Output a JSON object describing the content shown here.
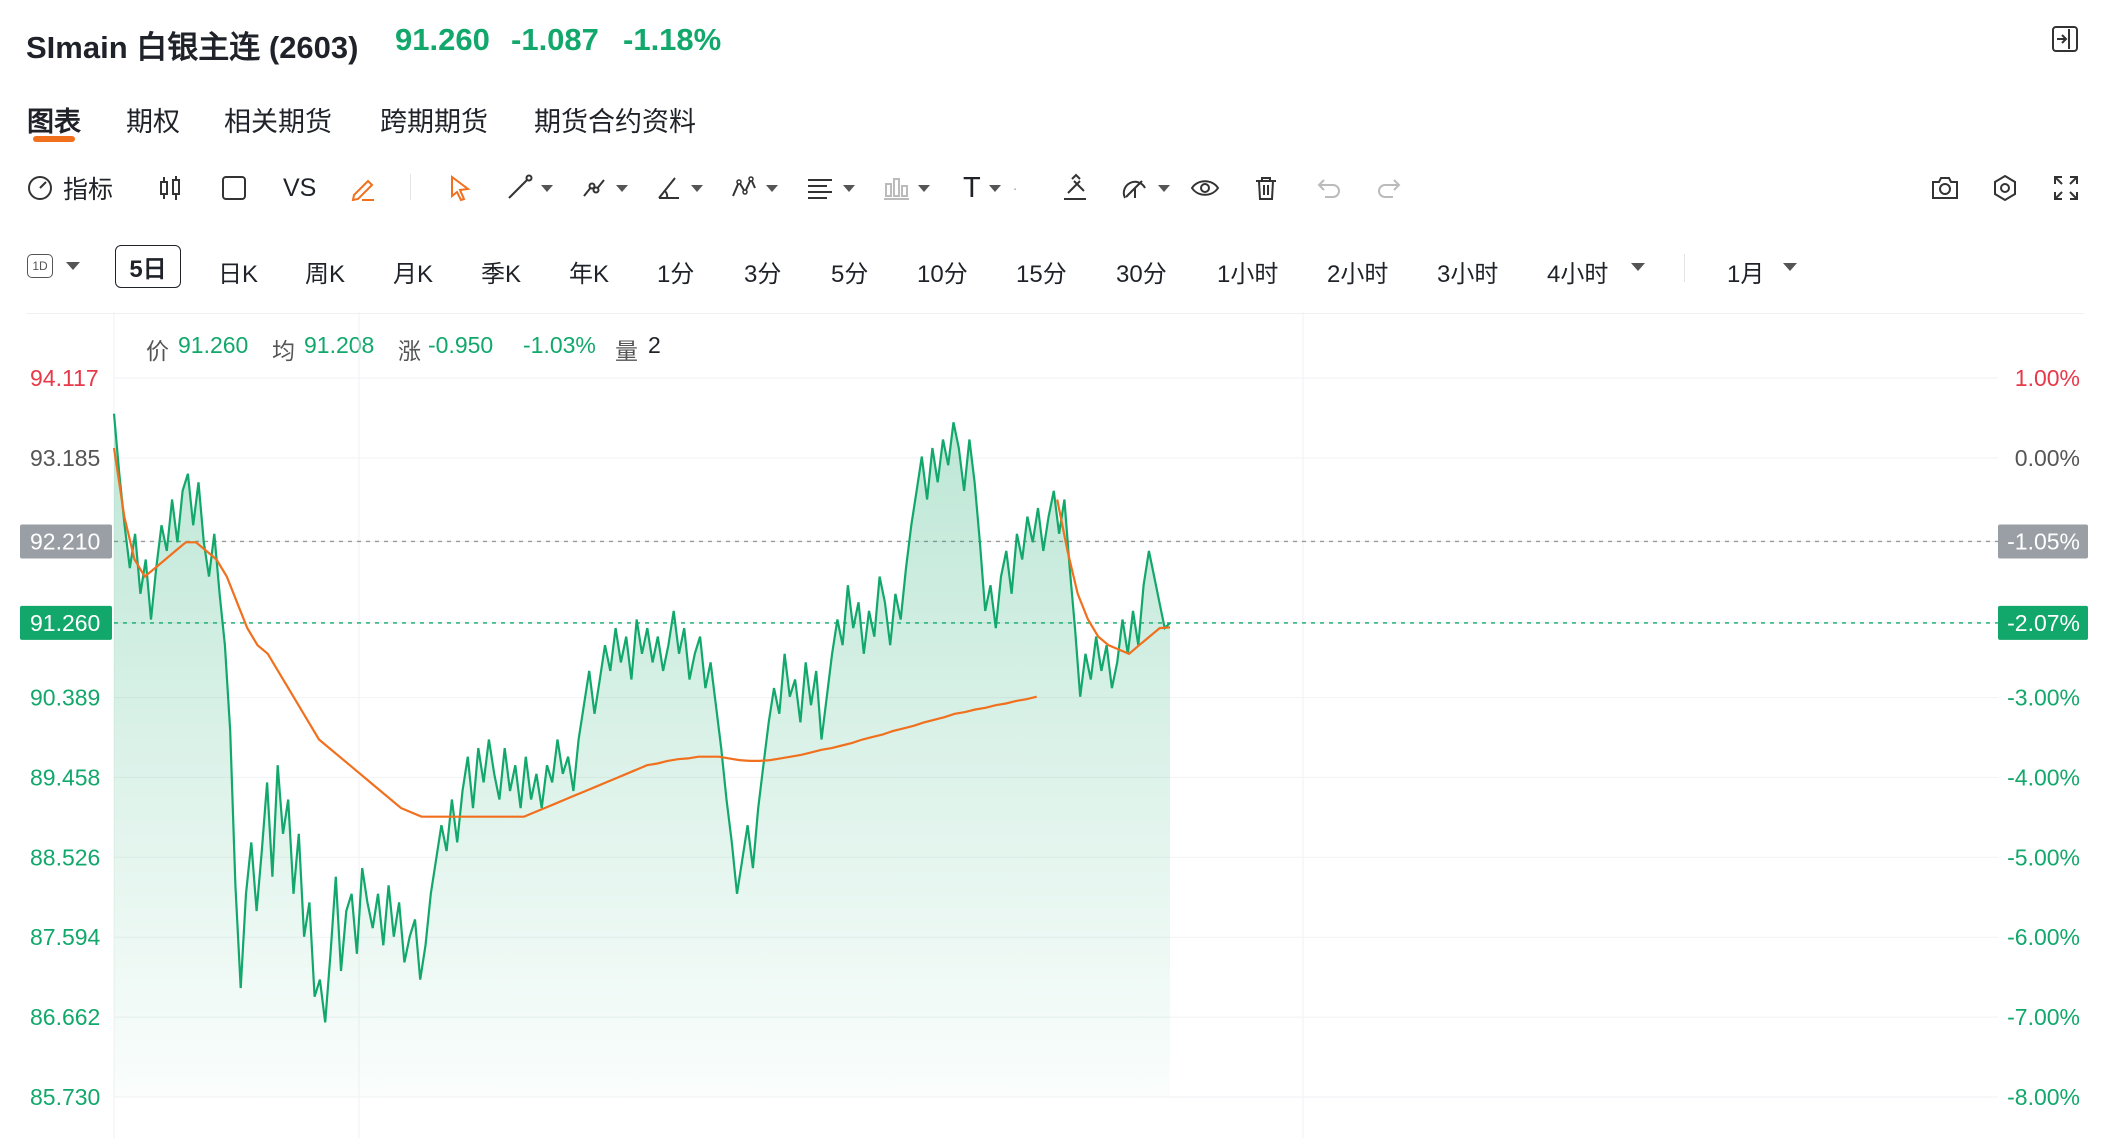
{
  "header": {
    "title": "SImain 白银主连 (2603)",
    "price": "91.260",
    "change": "-1.087",
    "change_pct": "-1.18%"
  },
  "tabs": [
    {
      "label": "图表",
      "active": true
    },
    {
      "label": "期权"
    },
    {
      "label": "相关期货"
    },
    {
      "label": "跨期期货"
    },
    {
      "label": "期货合约资料"
    }
  ],
  "toolbar": {
    "indicators_label": "指标",
    "compare_label": "VS",
    "text_tool_label": "T",
    "icons": [
      "gauge-icon",
      "candlestick-icon",
      "square-icon",
      "vs",
      "pencil-icon",
      "cursor-icon",
      "line-icon",
      "multi-line-icon",
      "angle-icon",
      "pattern-icon",
      "fib-icon",
      "bar-measure-icon",
      "text-icon",
      "magnet-icon",
      "draw-lock-icon",
      "eye-icon",
      "trash-icon",
      "undo-icon",
      "redo-icon",
      "camera-icon",
      "settings-icon",
      "fullscreen-icon"
    ]
  },
  "periods": {
    "interval_badge": "1D",
    "items": [
      "5日",
      "日K",
      "周K",
      "月K",
      "季K",
      "年K",
      "1分",
      "3分",
      "5分",
      "10分",
      "15分",
      "30分",
      "1小时",
      "2小时",
      "3小时",
      "4小时",
      "1月"
    ],
    "active": "5日"
  },
  "legend": {
    "price_label": "价",
    "price": "91.260",
    "avg_label": "均",
    "avg": "91.208",
    "change_label": "涨",
    "change": "-0.950",
    "change_pct": "-1.03%",
    "volume_label": "量",
    "volume": "2"
  },
  "colors": {
    "up": "#e8384a",
    "down": "#12a86b",
    "avg_line": "#f0701e",
    "accent": "#f0701e"
  },
  "chart_data": {
    "type": "area",
    "y_left_ticks": [
      "94.117",
      "93.185",
      "92.210",
      "91.260",
      "90.389",
      "89.458",
      "88.526",
      "87.594",
      "86.662",
      "85.730"
    ],
    "y_right_ticks": [
      "1.00%",
      "0.00%",
      "-1.05%",
      "-2.07%",
      "-3.00%",
      "-4.00%",
      "-5.00%",
      "-6.00%",
      "-7.00%",
      "-8.00%"
    ],
    "ylim": [
      85.73,
      94.117
    ],
    "reference_price": 93.185,
    "highlight_left": [
      {
        "label": "92.210",
        "value": 92.21,
        "style": "gray"
      },
      {
        "label": "91.260",
        "value": 91.26,
        "style": "green"
      }
    ],
    "highlight_right": [
      {
        "label": "-1.05%",
        "value": 92.21,
        "style": "gray"
      },
      {
        "label": "-2.07%",
        "value": 91.26,
        "style": "green"
      }
    ],
    "sessions": 5,
    "series": [
      {
        "name": "价",
        "values": [
          93.7,
          93.0,
          92.4,
          91.9,
          92.3,
          91.6,
          92.0,
          91.3,
          91.9,
          92.4,
          92.1,
          92.7,
          92.2,
          92.8,
          93.0,
          92.4,
          92.9,
          92.2,
          91.8,
          92.3,
          91.6,
          91.0,
          90.0,
          88.2,
          87.0,
          88.1,
          88.7,
          87.9,
          88.6,
          89.4,
          88.3,
          89.6,
          88.8,
          89.2,
          88.1,
          88.8,
          87.6,
          88.0,
          86.9,
          87.1,
          86.6,
          87.4,
          88.3,
          87.2,
          87.9,
          88.1,
          87.4,
          88.4,
          88.0,
          87.7,
          88.1,
          87.5,
          88.2,
          87.6,
          88.0,
          87.3,
          87.6,
          87.8,
          87.1,
          87.5,
          88.1,
          88.5,
          88.9,
          88.6,
          89.2,
          88.7,
          89.3,
          89.7,
          89.1,
          89.8,
          89.4,
          89.9,
          89.5,
          89.2,
          89.8,
          89.3,
          89.6,
          89.1,
          89.7,
          89.2,
          89.5,
          89.1,
          89.6,
          89.4,
          89.9,
          89.5,
          89.7,
          89.3,
          89.9,
          90.3,
          90.7,
          90.2,
          90.6,
          91.0,
          90.7,
          91.2,
          90.8,
          91.1,
          90.6,
          91.3,
          90.9,
          91.2,
          90.8,
          91.1,
          90.7,
          91.0,
          91.4,
          90.9,
          91.2,
          90.6,
          90.9,
          91.1,
          90.5,
          90.8,
          90.3,
          89.8,
          89.2,
          88.7,
          88.1,
          88.5,
          88.9,
          88.4,
          89.1,
          89.6,
          90.1,
          90.5,
          90.2,
          90.9,
          90.4,
          90.6,
          90.1,
          90.8,
          90.3,
          90.7,
          89.9,
          90.4,
          90.9,
          91.3,
          91.0,
          91.7,
          91.2,
          91.5,
          90.9,
          91.4,
          91.1,
          91.8,
          91.5,
          91.0,
          91.6,
          91.3,
          91.9,
          92.4,
          92.8,
          93.2,
          92.7,
          93.3,
          92.9,
          93.4,
          93.1,
          93.6,
          93.3,
          92.8,
          93.4,
          92.9,
          92.2,
          91.4,
          91.7,
          91.2,
          91.8,
          92.1,
          91.6,
          92.3,
          92.0,
          92.5,
          92.2,
          92.6,
          92.1,
          92.5,
          92.8,
          92.3,
          92.7,
          91.9,
          91.2,
          90.4,
          90.9,
          90.6,
          91.1,
          90.7,
          91.0,
          90.5,
          90.8,
          91.3,
          90.9,
          91.4,
          91.0,
          91.7,
          92.1,
          91.8,
          91.5,
          91.2,
          91.26
        ],
        "color": "#12a86b"
      },
      {
        "name": "均",
        "values": [
          93.3,
          92.5,
          92.0,
          91.8,
          91.9,
          92.0,
          92.1,
          92.2,
          92.2,
          92.1,
          92.0,
          91.8,
          91.5,
          91.2,
          91.0,
          90.9,
          90.7,
          90.5,
          90.3,
          90.1,
          89.9,
          89.8,
          89.7,
          89.6,
          89.5,
          89.4,
          89.3,
          89.2,
          89.1,
          89.05,
          89.0,
          89.0,
          89.0,
          89.0,
          89.0,
          89.0,
          89.0,
          89.0,
          89.0,
          89.0,
          89.0,
          89.05,
          89.1,
          89.15,
          89.2,
          89.25,
          89.3,
          89.35,
          89.4,
          89.45,
          89.5,
          89.55,
          89.6,
          89.62,
          89.65,
          89.67,
          89.68,
          89.7,
          89.7,
          89.7,
          89.68,
          89.66,
          89.65,
          89.65,
          89.66,
          89.68,
          89.7,
          89.72,
          89.75,
          89.78,
          89.8,
          89.83,
          89.86,
          89.9,
          89.93,
          89.96,
          90.0,
          90.03,
          90.06,
          90.1,
          90.13,
          90.16,
          90.2,
          90.22,
          90.25,
          90.27,
          90.3,
          90.32,
          90.35,
          90.37,
          90.4,
          null,
          92.7,
          92.1,
          91.6,
          91.3,
          91.1,
          91.0,
          90.95,
          90.9,
          91.0,
          91.1,
          91.2,
          91.208
        ],
        "color": "#f0701e"
      }
    ]
  }
}
